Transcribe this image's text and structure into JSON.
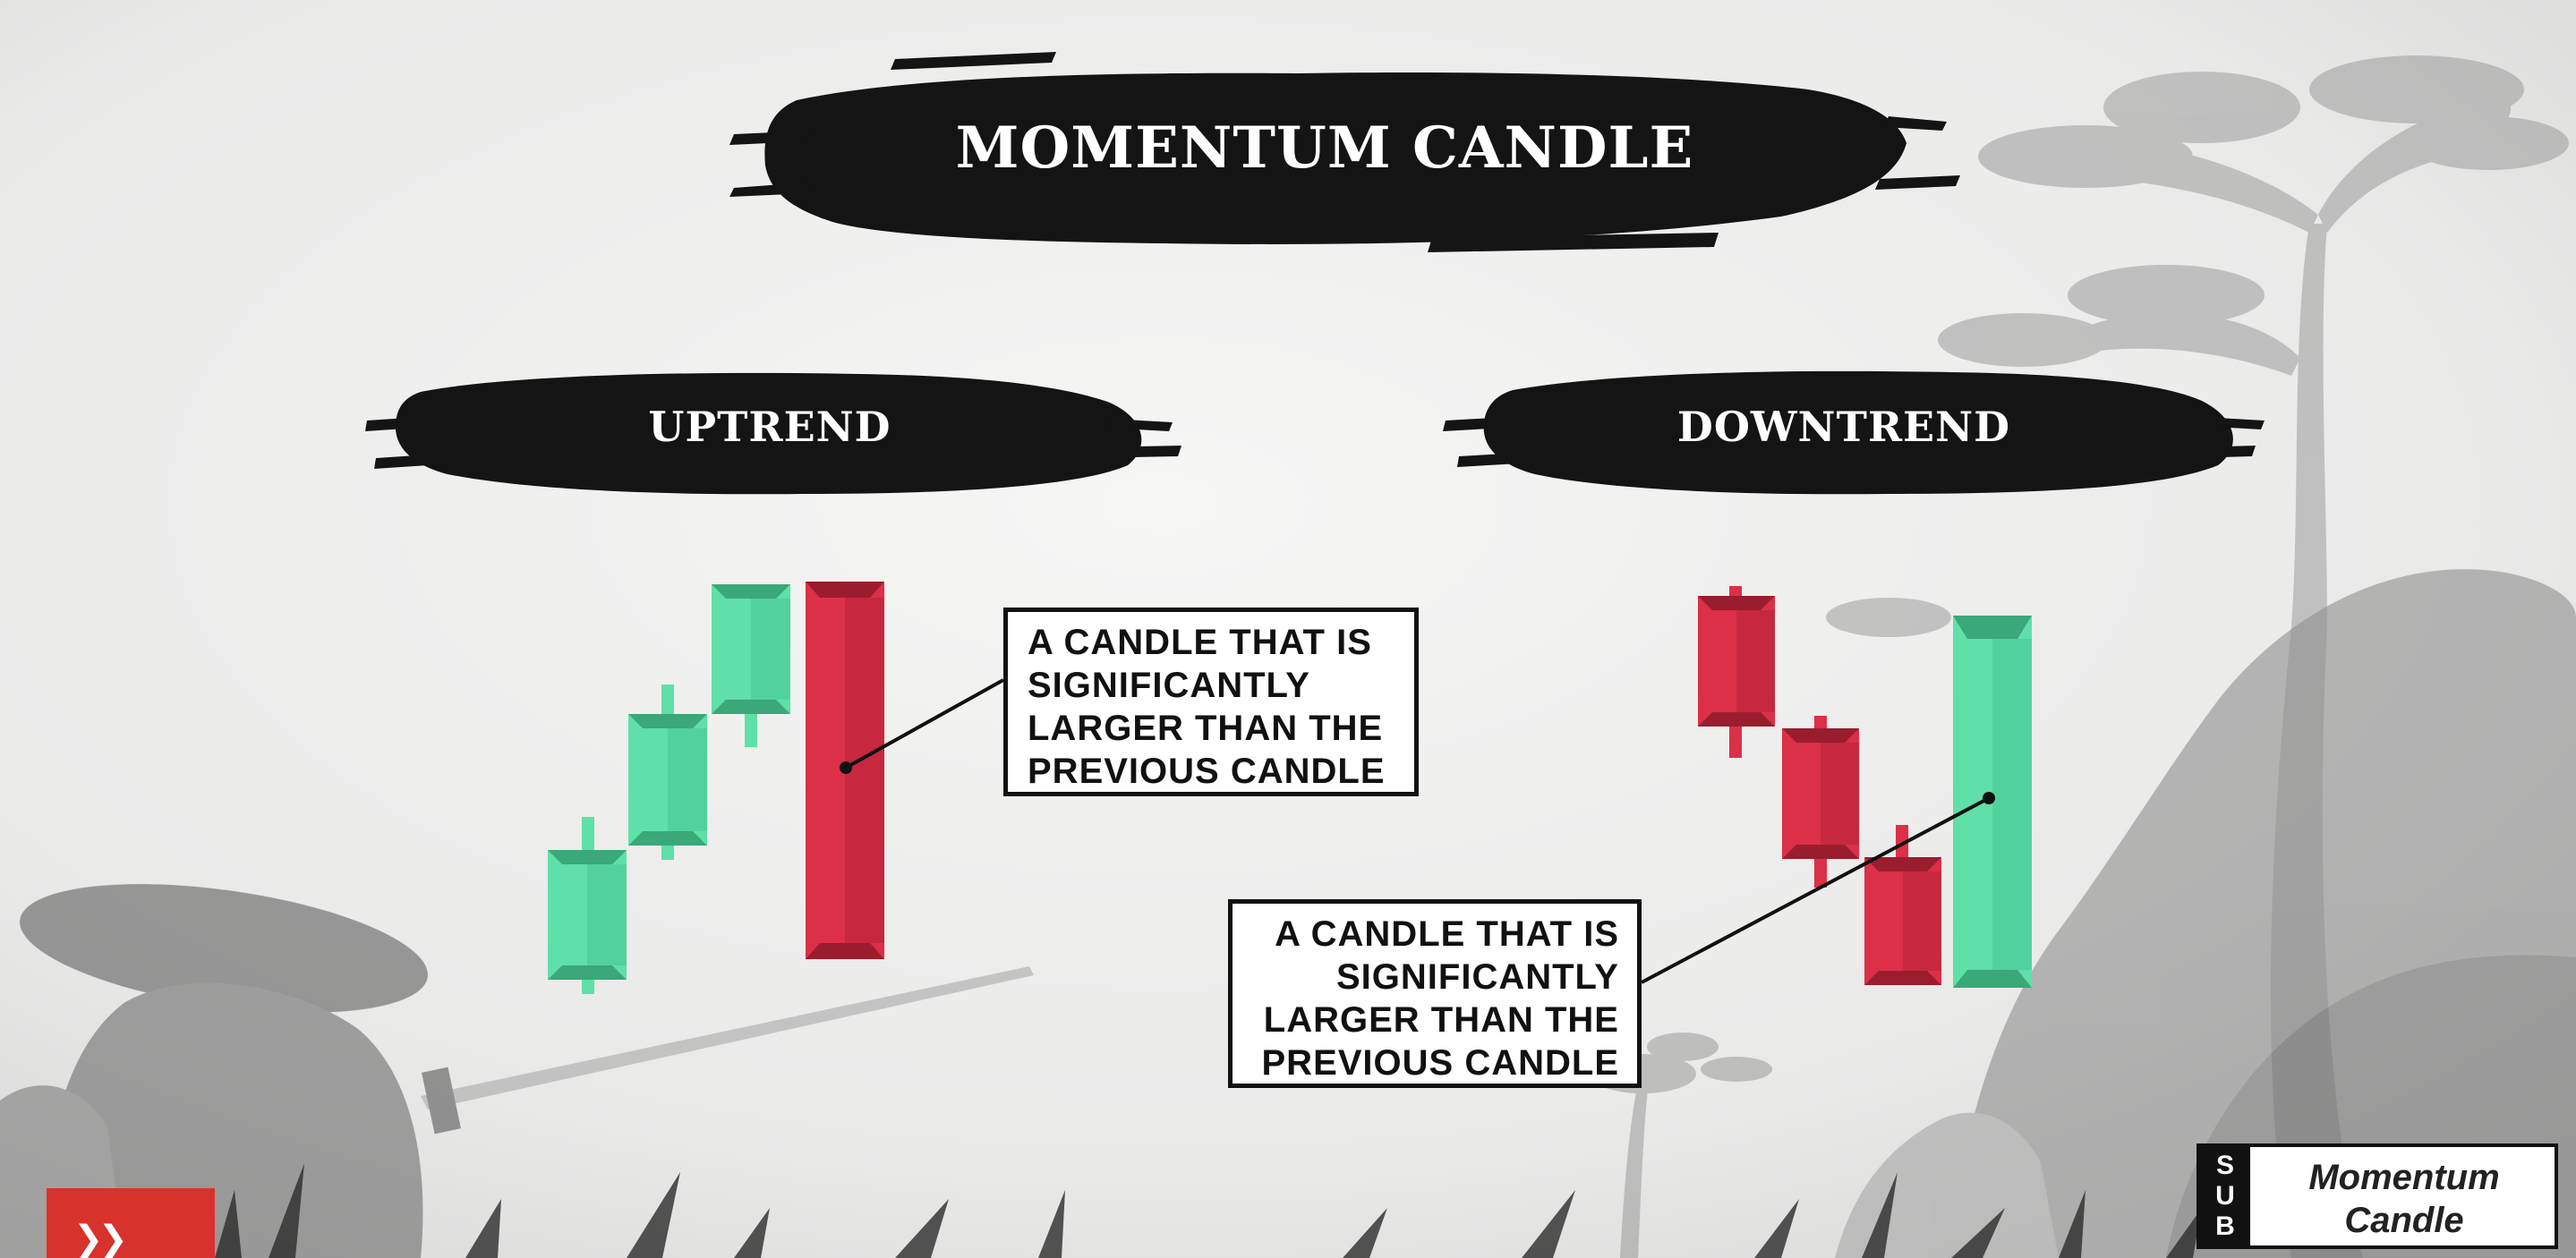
{
  "title": "MOMENTUM CANDLE",
  "sections": {
    "uptrend": {
      "label": "UPTREND",
      "callout": [
        "A CANDLE THAT IS",
        "SIGNIFICANTLY",
        "LARGER THAN THE",
        "PREVIOUS CANDLE"
      ]
    },
    "downtrend": {
      "label": "DOWNTREND",
      "callout": [
        "A CANDLE THAT IS",
        "SIGNIFICANTLY",
        "LARGER THAN THE",
        "PREVIOUS CANDLE"
      ]
    }
  },
  "badge": {
    "strip_letters": [
      "S",
      "U",
      "B"
    ],
    "title_lines": [
      "Momentum",
      "Candle"
    ]
  },
  "colors": {
    "bullish": "#5ee0a8",
    "bullish_dark": "#3aa878",
    "bearish": "#dc2f48",
    "bearish_dark": "#9a1d2e",
    "brush": "#141414",
    "accent_red": "#d7322c"
  },
  "icons": {
    "corner_icon": "double-chevron-icon"
  }
}
